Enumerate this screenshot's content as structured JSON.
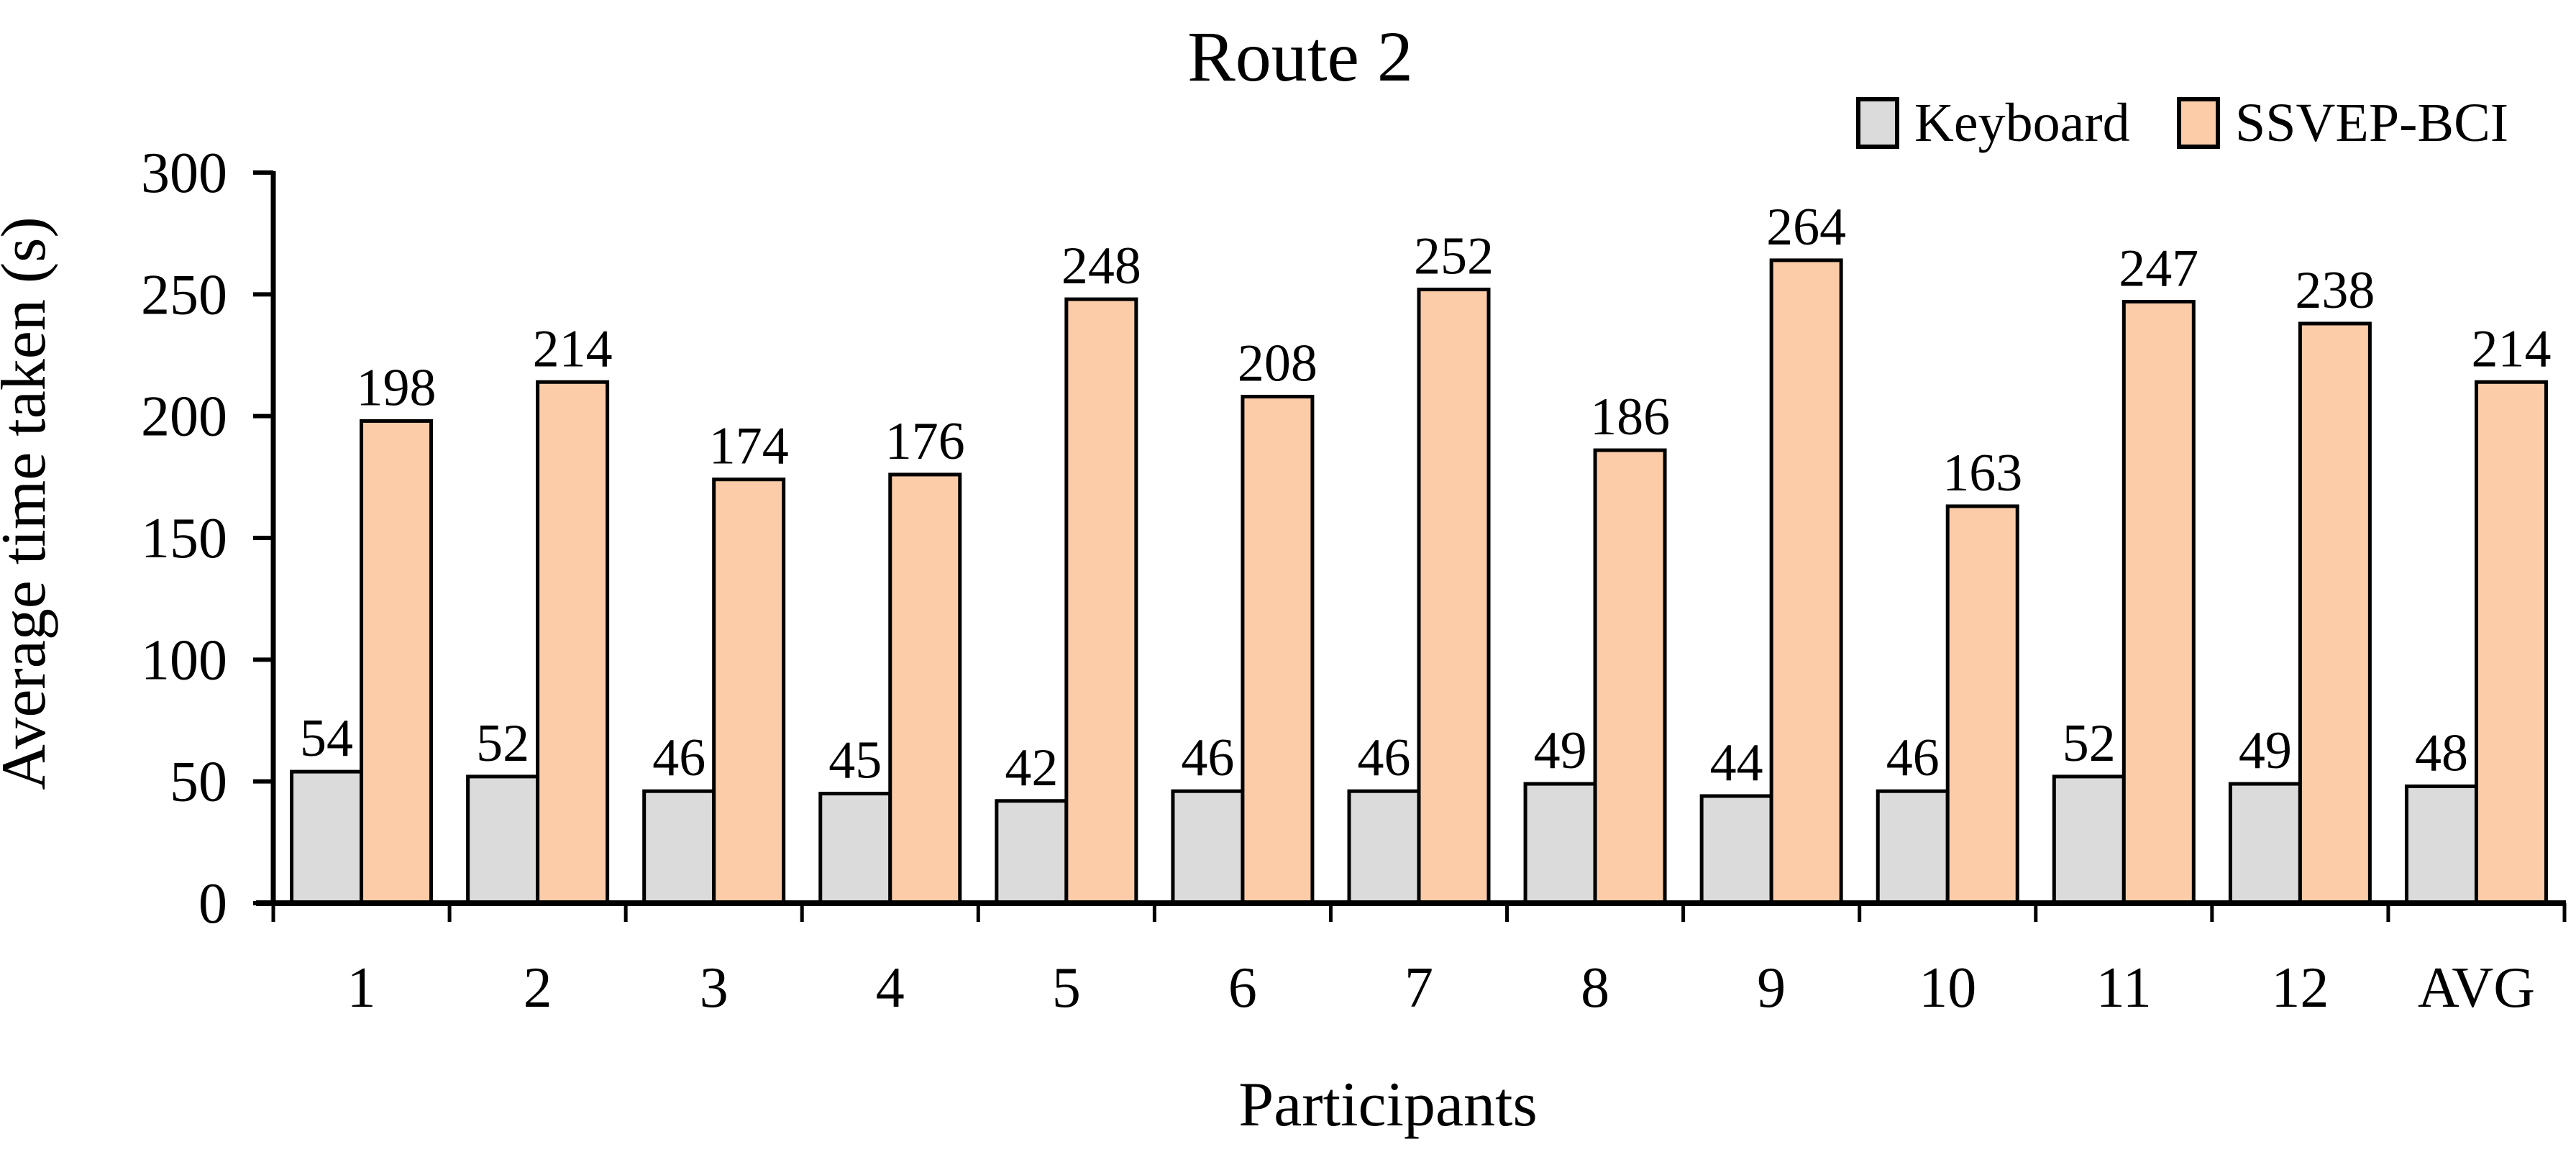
{
  "figure": {
    "title": "Route 2",
    "x_axis_label": "Participants",
    "y_axis_label": "Average time taken (s)"
  },
  "legend": {
    "items": [
      {
        "label": "Keyboard",
        "color": "#DBDBDB"
      },
      {
        "label": "SSVEP-BCI",
        "color": "#FCCCA8"
      }
    ]
  },
  "colors": {
    "keyboard_fill": "#DBDBDB",
    "ssvep_fill": "#FCCCA8",
    "bar_outline": "#000000",
    "axis": "#000000",
    "background": "#FFFFFF"
  },
  "chart_data": {
    "type": "bar",
    "title": "Route 2",
    "xlabel": "Participants",
    "ylabel": "Average time taken (s)",
    "categories": [
      "1",
      "2",
      "3",
      "4",
      "5",
      "6",
      "7",
      "8",
      "9",
      "10",
      "11",
      "12",
      "AVG"
    ],
    "series": [
      {
        "name": "Keyboard",
        "color": "#DBDBDB",
        "values": [
          54,
          52,
          46,
          45,
          42,
          46,
          46,
          49,
          44,
          46,
          52,
          49,
          48
        ]
      },
      {
        "name": "SSVEP-BCI",
        "color": "#FCCCA8",
        "values": [
          198,
          214,
          174,
          176,
          248,
          208,
          252,
          186,
          264,
          163,
          247,
          238,
          214
        ]
      }
    ],
    "ylim": [
      0,
      300
    ],
    "yticks": [
      0,
      50,
      100,
      150,
      200,
      250,
      300
    ],
    "grid": false,
    "legend_position": "top-right",
    "data_labels": true
  }
}
